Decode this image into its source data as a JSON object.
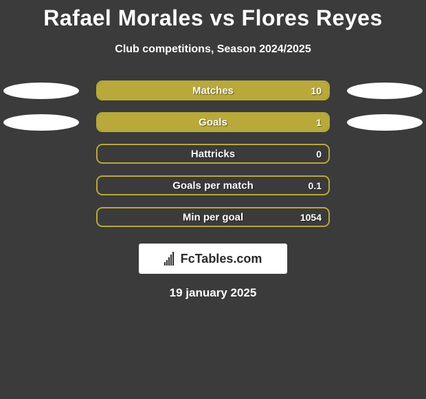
{
  "title": "Rafael Morales vs Flores Reyes",
  "subtitle": "Club competitions, Season 2024/2025",
  "logo_text": "FcTables.com",
  "date": "19 january 2025",
  "colors": {
    "background": "#3b3b3b",
    "bar_fill": "#b8a93a",
    "bar_border": "#b8a93a",
    "ellipse": "#ffffff",
    "text": "#ffffff"
  },
  "stats": [
    {
      "label": "Matches",
      "value": "10",
      "fill_pct": 100,
      "left_ellipse": true,
      "right_ellipse": true
    },
    {
      "label": "Goals",
      "value": "1",
      "fill_pct": 100,
      "left_ellipse": true,
      "right_ellipse": true
    },
    {
      "label": "Hattricks",
      "value": "0",
      "fill_pct": 0,
      "left_ellipse": false,
      "right_ellipse": false
    },
    {
      "label": "Goals per match",
      "value": "0.1",
      "fill_pct": 0,
      "left_ellipse": false,
      "right_ellipse": false
    },
    {
      "label": "Min per goal",
      "value": "1054",
      "fill_pct": 0,
      "left_ellipse": false,
      "right_ellipse": false
    }
  ]
}
